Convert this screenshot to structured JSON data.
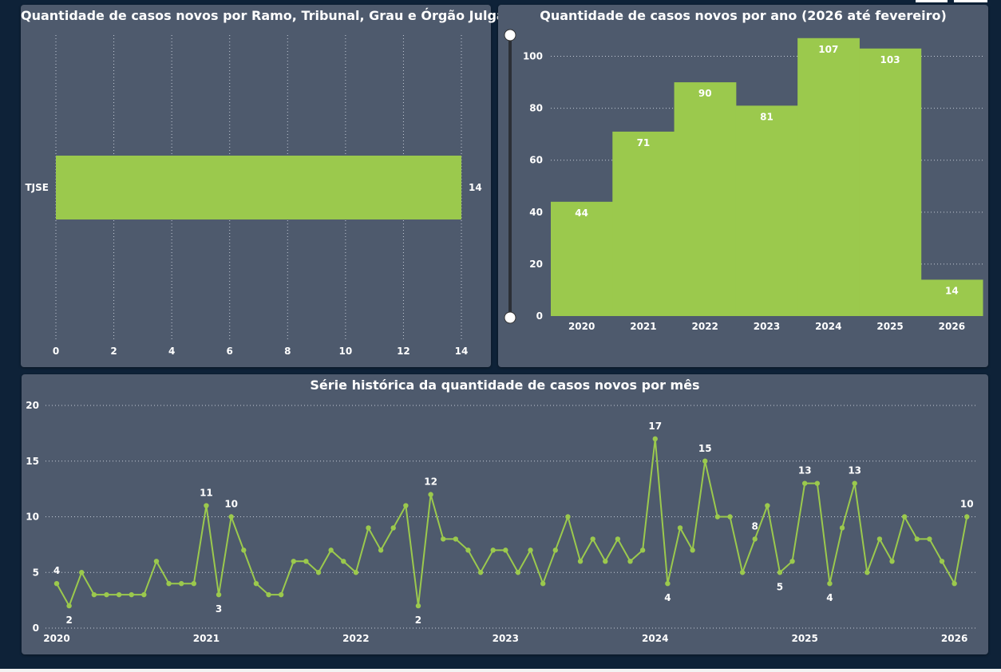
{
  "colors": {
    "bar": "#9bc94d",
    "panel": "#4e5a6d",
    "background": "#0e2238",
    "text": "#ffffff"
  },
  "panels": {
    "bar_title": "Quantidade de casos novos por Ramo, Tribunal, Grau e Órgão Julgador",
    "year_title": "Quantidade de casos novos por ano (2026 até fevereiro)",
    "series_title": "Série histórica da quantidade de casos novos por mês"
  },
  "chart_data": [
    {
      "type": "bar",
      "orientation": "horizontal",
      "title": "Quantidade de casos novos por Ramo, Tribunal, Grau e Órgão Julgador",
      "categories": [
        "TJSE"
      ],
      "values": [
        14
      ],
      "xlim": [
        0,
        14
      ],
      "xticks": [
        0,
        2,
        4,
        6,
        8,
        10,
        12,
        14
      ],
      "grid": "vertical dotted"
    },
    {
      "type": "bar",
      "title": "Quantidade de casos novos por ano (2026 até fevereiro)",
      "categories": [
        "2020",
        "2021",
        "2022",
        "2023",
        "2024",
        "2025",
        "2026"
      ],
      "values": [
        44,
        71,
        90,
        81,
        107,
        103,
        14
      ],
      "ylim": [
        0,
        110
      ],
      "yticks": [
        0,
        20,
        40,
        60,
        80,
        100
      ],
      "grid": "horizontal dotted",
      "range_slider": "vertical on left"
    },
    {
      "type": "line",
      "title": "Série histórica da quantidade de casos novos por mês",
      "start": "2020-01",
      "values": [
        4,
        2,
        5,
        3,
        3,
        3,
        3,
        3,
        6,
        4,
        4,
        4,
        11,
        3,
        10,
        7,
        4,
        3,
        3,
        6,
        6,
        5,
        7,
        6,
        5,
        9,
        7,
        9,
        11,
        2,
        12,
        8,
        8,
        7,
        5,
        7,
        7,
        5,
        7,
        4,
        7,
        10,
        6,
        8,
        6,
        8,
        6,
        7,
        17,
        4,
        9,
        7,
        15,
        10,
        10,
        5,
        8,
        11,
        5,
        6,
        13,
        13,
        4,
        9,
        13,
        5,
        8,
        6,
        10,
        8,
        8,
        6,
        4,
        10
      ],
      "labeled_points": [
        0,
        1,
        12,
        13,
        14,
        29,
        30,
        48,
        49,
        52,
        56,
        58,
        60,
        62,
        64,
        73
      ],
      "xticks": [
        "2020",
        "2021",
        "2022",
        "2023",
        "2024",
        "2025",
        "2026"
      ],
      "ylim": [
        0,
        20
      ],
      "yticks": [
        0,
        5,
        10,
        15,
        20
      ],
      "grid": "horizontal dotted"
    }
  ]
}
